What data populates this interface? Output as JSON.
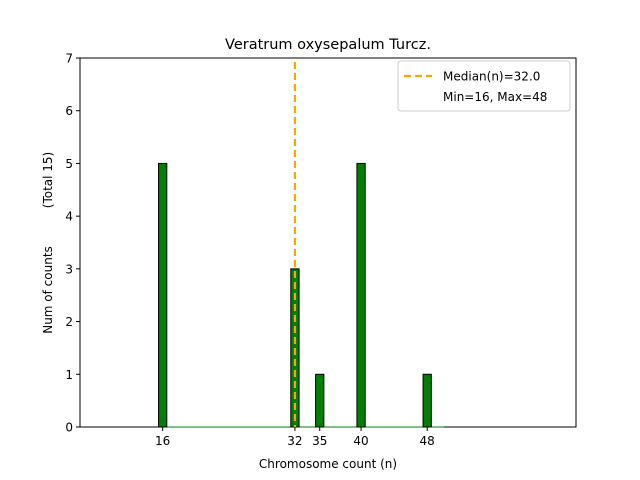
{
  "chart_data": {
    "type": "bar",
    "title": "Veratrum oxysepalum Turcz.",
    "xlabel": "Chromosome count (n)",
    "ylabel_main": "Num of counts",
    "ylabel_total": "(Total 15)",
    "xlim": [
      6,
      66
    ],
    "ylim": [
      0,
      7
    ],
    "yticks": [
      0,
      1,
      2,
      3,
      4,
      5,
      6,
      7
    ],
    "xticks": [
      16,
      32,
      35,
      40,
      48
    ],
    "bars": [
      {
        "x": 16,
        "value": 5
      },
      {
        "x": 32,
        "value": 3
      },
      {
        "x": 35,
        "value": 1
      },
      {
        "x": 40,
        "value": 5
      },
      {
        "x": 48,
        "value": 1
      }
    ],
    "bar_width": 1,
    "baseline_range": [
      16,
      50
    ],
    "median": 32.0,
    "min": 16,
    "max": 48,
    "legend": {
      "position": "top-right",
      "median_label": "Median(n)=32.0",
      "range_label": "Min=16, Max=48"
    },
    "colors": {
      "bar_fill": "#008000",
      "bar_edge": "#000000",
      "median_line": "#FFA500"
    }
  }
}
